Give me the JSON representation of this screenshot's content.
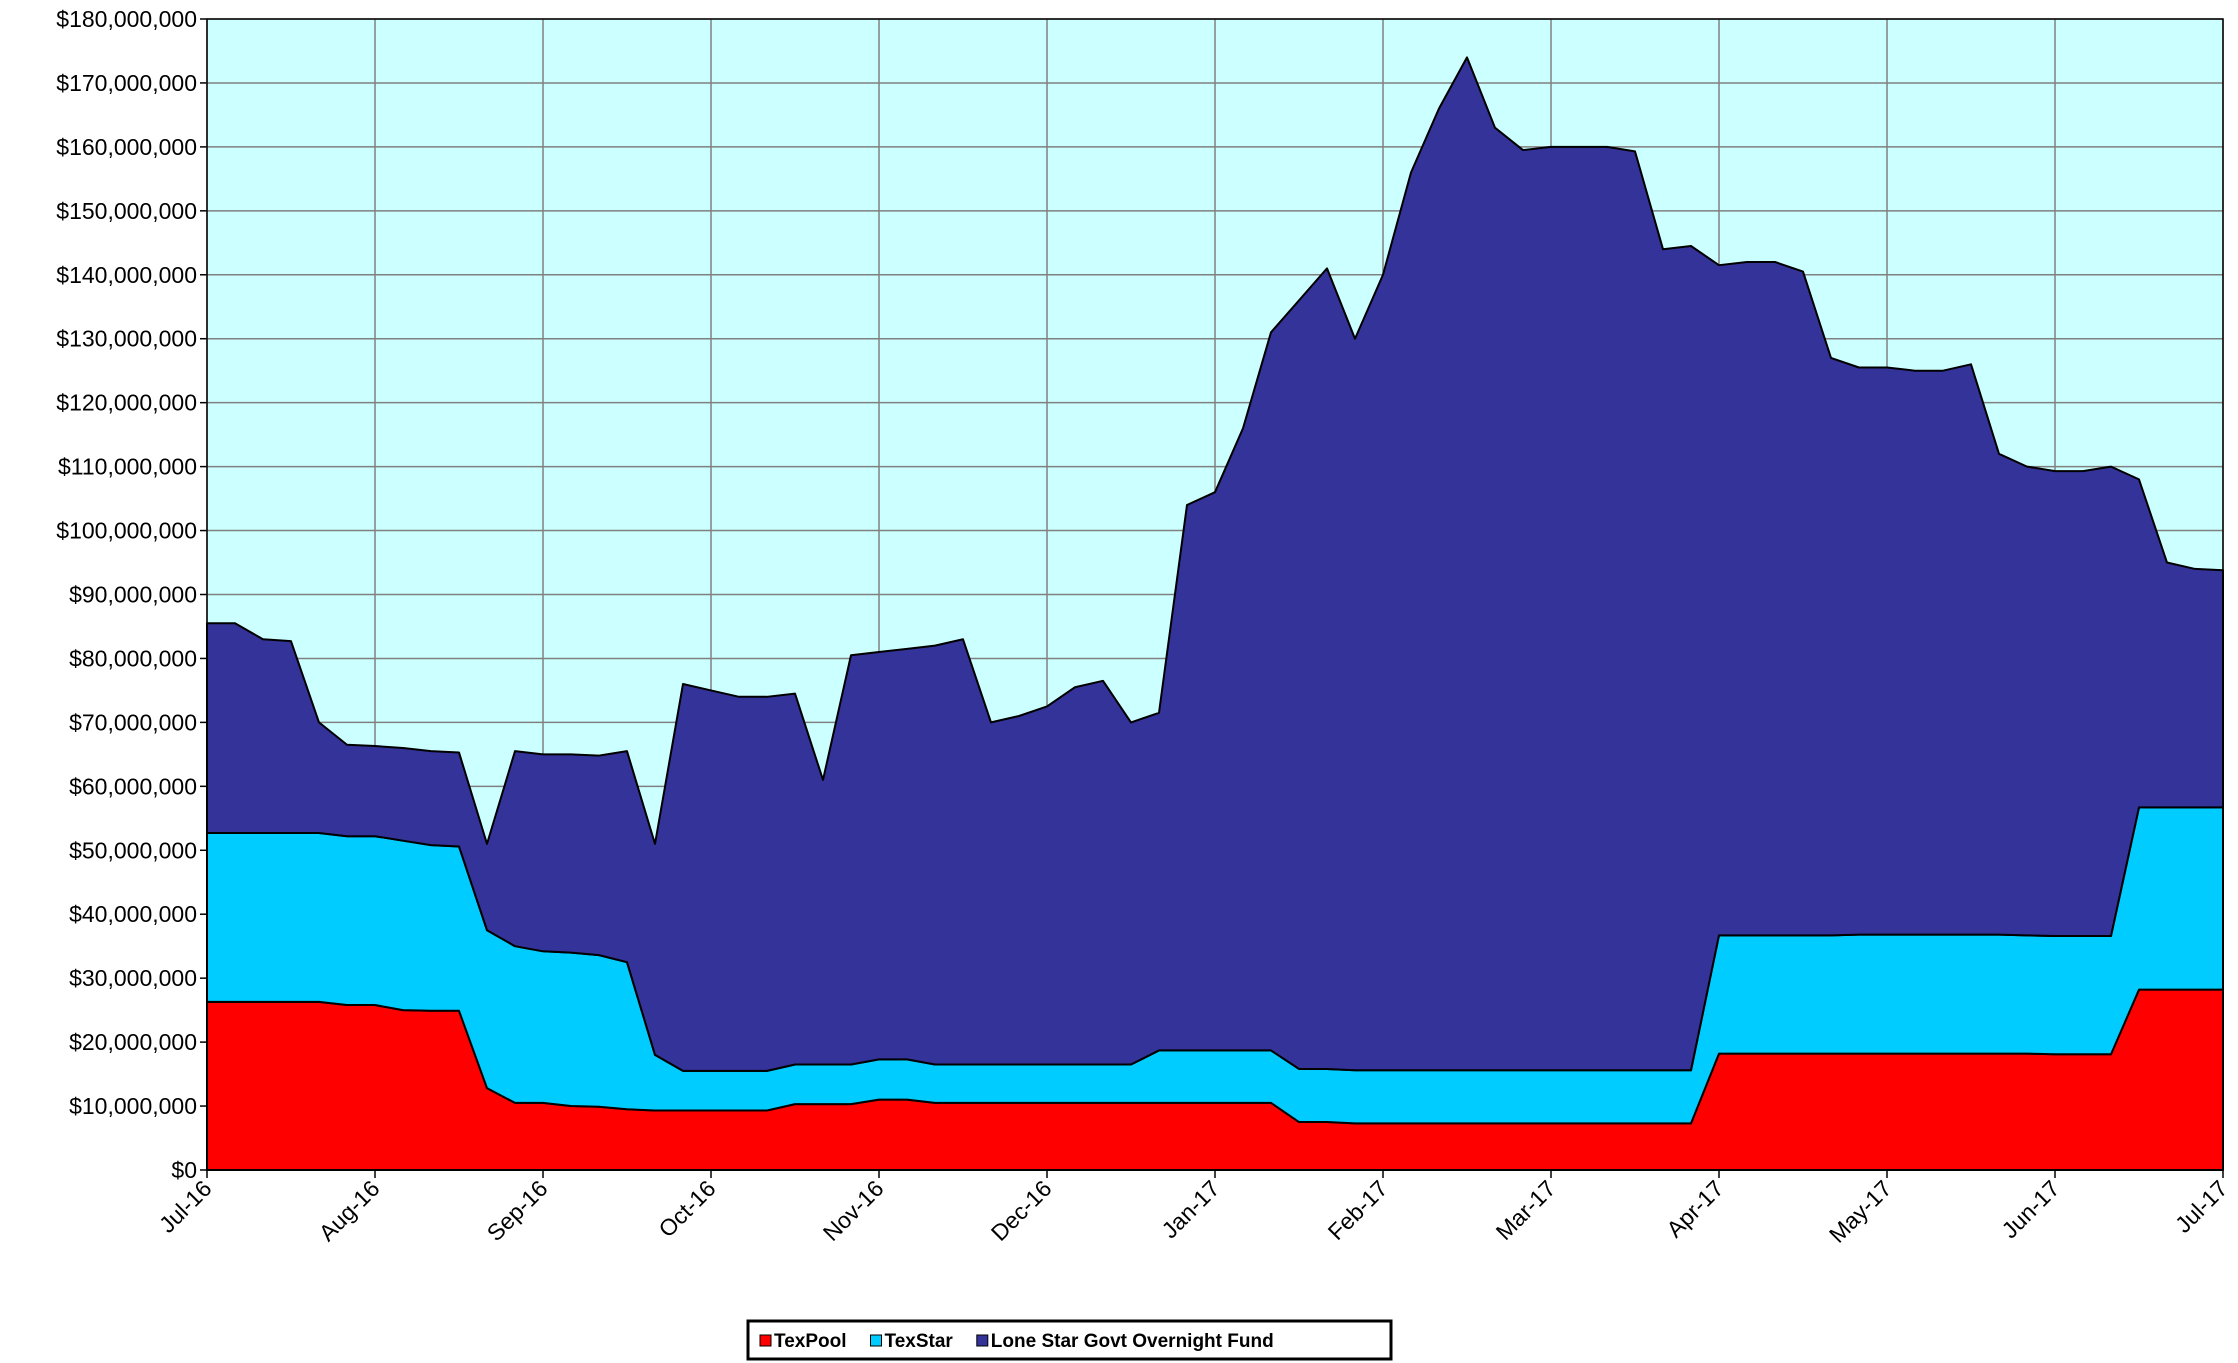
{
  "chart_data": {
    "type": "stacked-area",
    "categories": [
      "Jul-16",
      null,
      null,
      null,
      null,
      null,
      "Aug-16",
      null,
      null,
      null,
      null,
      null,
      "Sep-16",
      null,
      null,
      null,
      null,
      null,
      "Oct-16",
      null,
      null,
      null,
      null,
      null,
      "Nov-16",
      null,
      null,
      null,
      null,
      null,
      "Dec-16",
      null,
      null,
      null,
      null,
      null,
      "Jan-17",
      null,
      null,
      null,
      null,
      null,
      "Feb-17",
      null,
      null,
      null,
      null,
      null,
      "Mar-17",
      null,
      null,
      null,
      null,
      null,
      "Apr-17",
      null,
      null,
      null,
      null,
      null,
      "May-17",
      null,
      null,
      null,
      null,
      null,
      "Jun-17",
      null,
      null,
      null,
      null,
      null,
      "Jul-17"
    ],
    "series": [
      {
        "name": "TexPool",
        "color": "#ff0000",
        "values": [
          26300000,
          26300000,
          26300000,
          26300000,
          26300000,
          25800000,
          25800000,
          25000000,
          24900000,
          24900000,
          12800000,
          10500000,
          10500000,
          10000000,
          9900000,
          9500000,
          9300000,
          9300000,
          9300000,
          9300000,
          9300000,
          10300000,
          10300000,
          10300000,
          11000000,
          11000000,
          10500000,
          10500000,
          10500000,
          10500000,
          10500000,
          10500000,
          10500000,
          10500000,
          10500000,
          10500000,
          10500000,
          10500000,
          10500000,
          7500000,
          7500000,
          7300000,
          7300000,
          7300000,
          7300000,
          7300000,
          7300000,
          7300000,
          7300000,
          7300000,
          7300000,
          7300000,
          7300000,
          7300000,
          18200000,
          18200000,
          18200000,
          18200000,
          18200000,
          18200000,
          18200000,
          18200000,
          18200000,
          18200000,
          18200000,
          18200000,
          18100000,
          18100000,
          18100000,
          28200000,
          28200000,
          28200000,
          28200000
        ]
      },
      {
        "name": "TexStar",
        "color": "#00ccff",
        "values": [
          26400000,
          26400000,
          26400000,
          26400000,
          26400000,
          26400000,
          26400000,
          26500000,
          25900000,
          25700000,
          24700000,
          24500000,
          23700000,
          24000000,
          23700000,
          23000000,
          8700000,
          6200000,
          6200000,
          6200000,
          6200000,
          6200000,
          6200000,
          6200000,
          6300000,
          6300000,
          6000000,
          6000000,
          6000000,
          6000000,
          6000000,
          6000000,
          6000000,
          6000000,
          8200000,
          8200000,
          8200000,
          8200000,
          8200000,
          8300000,
          8300000,
          8300000,
          8300000,
          8300000,
          8300000,
          8300000,
          8300000,
          8300000,
          8300000,
          8300000,
          8300000,
          8300000,
          8300000,
          8300000,
          18500000,
          18500000,
          18500000,
          18500000,
          18500000,
          18600000,
          18600000,
          18600000,
          18600000,
          18600000,
          18600000,
          18500000,
          18500000,
          18500000,
          18500000,
          28500000,
          28500000,
          28500000,
          28500000
        ]
      },
      {
        "name": "Lone Star Govt Overnight Fund",
        "color": "#333399",
        "values": [
          32800000,
          32800000,
          30300000,
          30000000,
          17300000,
          14300000,
          14100000,
          14500000,
          14700000,
          14700000,
          13500000,
          30500000,
          30800000,
          31000000,
          31200000,
          33000000,
          33000000,
          60500000,
          59500000,
          58500000,
          58500000,
          58000000,
          44500000,
          64000000,
          63700000,
          64200000,
          65500000,
          66500000,
          53500000,
          54500000,
          56000000,
          59000000,
          60000000,
          53500000,
          52800000,
          85300000,
          87300000,
          97300000,
          112300000,
          120200000,
          125200000,
          114400000,
          124400000,
          140400000,
          150400000,
          158400000,
          147400000,
          143900000,
          144400000,
          144400000,
          144400000,
          143700000,
          128400000,
          128900000,
          104800000,
          105300000,
          105300000,
          103800000,
          90300000,
          88700000,
          88700000,
          88200000,
          88200000,
          89200000,
          75200000,
          73300000,
          72700000,
          72700000,
          73400000,
          51300000,
          38300000,
          37300000,
          37100000
        ]
      }
    ],
    "ylim": [
      0,
      180000000
    ],
    "yticks": [
      {
        "value": 0,
        "label": "$0"
      },
      {
        "value": 10000000,
        "label": "$10,000,000"
      },
      {
        "value": 20000000,
        "label": "$20,000,000"
      },
      {
        "value": 30000000,
        "label": "$30,000,000"
      },
      {
        "value": 40000000,
        "label": "$40,000,000"
      },
      {
        "value": 50000000,
        "label": "$50,000,000"
      },
      {
        "value": 60000000,
        "label": "$60,000,000"
      },
      {
        "value": 70000000,
        "label": "$70,000,000"
      },
      {
        "value": 80000000,
        "label": "$80,000,000"
      },
      {
        "value": 90000000,
        "label": "$90,000,000"
      },
      {
        "value": 100000000,
        "label": "$100,000,000"
      },
      {
        "value": 110000000,
        "label": "$110,000,000"
      },
      {
        "value": 120000000,
        "label": "$120,000,000"
      },
      {
        "value": 130000000,
        "label": "$130,000,000"
      },
      {
        "value": 140000000,
        "label": "$140,000,000"
      },
      {
        "value": 150000000,
        "label": "$150,000,000"
      },
      {
        "value": 160000000,
        "label": "$160,000,000"
      },
      {
        "value": 170000000,
        "label": "$170,000,000"
      },
      {
        "value": 180000000,
        "label": "$180,000,000"
      }
    ],
    "grid": true,
    "legend": "bottom",
    "plot_background": "#ccffff"
  }
}
